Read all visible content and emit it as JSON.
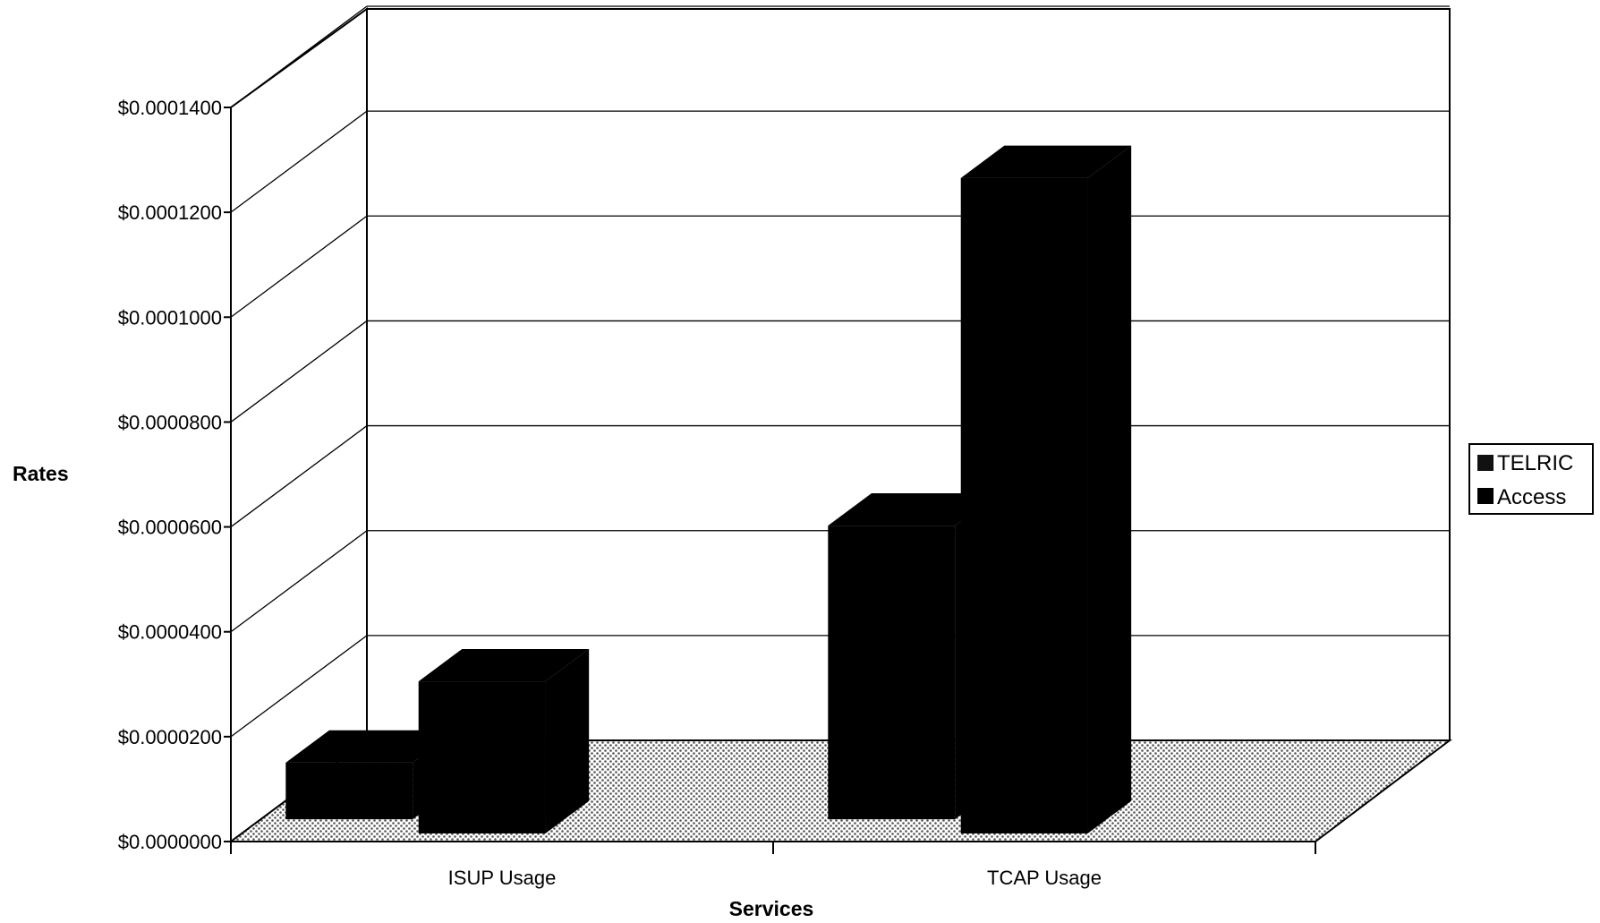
{
  "chart_data": {
    "type": "bar",
    "title": "",
    "xlabel": "Services",
    "ylabel": "Rates",
    "categories": [
      "ISUP Usage",
      "TCAP Usage"
    ],
    "series": [
      {
        "name": "TELRIC",
        "values": [
          1.08e-05,
          5.6e-05
        ]
      },
      {
        "name": "Access",
        "values": [
          2.9e-05,
          0.000125
        ]
      }
    ],
    "ylim": [
      0,
      0.00014
    ],
    "y_ticks": [
      {
        "value": 0.0,
        "label": "$0.0000000"
      },
      {
        "value": 2e-05,
        "label": "$0.0000200"
      },
      {
        "value": 4e-05,
        "label": "$0.0000400"
      },
      {
        "value": 6e-05,
        "label": "$0.0000600"
      },
      {
        "value": 8e-05,
        "label": "$0.0000800"
      },
      {
        "value": 0.0001,
        "label": "$0.0001000"
      },
      {
        "value": 0.00012,
        "label": "$0.0001200"
      },
      {
        "value": 0.00014,
        "label": "$0.0001400"
      }
    ],
    "grid": true,
    "legend_position": "right",
    "colors": {
      "bar": "#000000",
      "floor_pattern": "#9a9a9a",
      "grid": "#000000"
    }
  }
}
